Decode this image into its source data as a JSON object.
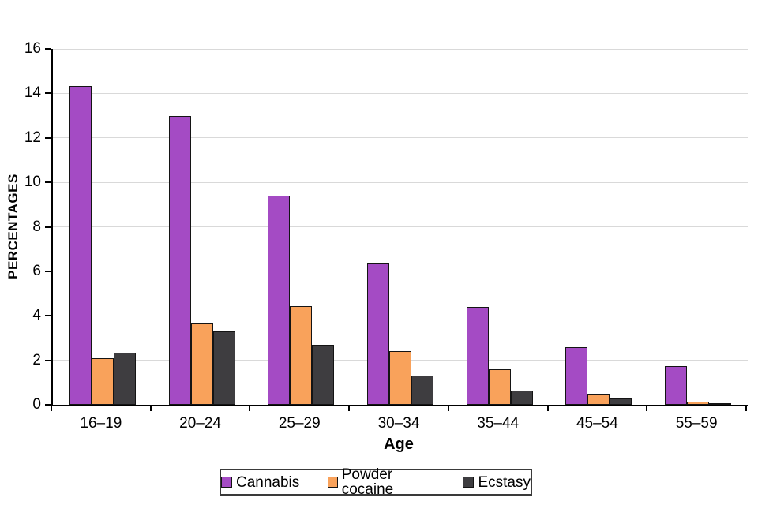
{
  "chart_data": {
    "type": "bar",
    "title": "",
    "xlabel": "Age",
    "ylabel": "PERCENTAGES",
    "categories": [
      "16–19",
      "20–24",
      "25–29",
      "30–34",
      "35–44",
      "45–54",
      "55–59"
    ],
    "series": [
      {
        "name": "Cannabis",
        "color": "#a44bc4",
        "values": [
          14.35,
          13.0,
          9.4,
          6.4,
          4.4,
          2.6,
          1.75
        ]
      },
      {
        "name": "Powder cocaine",
        "color": "#f9a25b",
        "values": [
          2.1,
          3.7,
          4.45,
          2.4,
          1.6,
          0.5,
          0.15
        ]
      },
      {
        "name": "Ecstasy",
        "color": "#3e3d40",
        "values": [
          2.35,
          3.3,
          2.7,
          1.3,
          0.65,
          0.3,
          0.05
        ]
      }
    ],
    "ylim": [
      0,
      16
    ],
    "yticks": [
      0,
      2,
      4,
      6,
      8,
      10,
      12,
      14,
      16
    ],
    "grid": true,
    "gridline_color": "#d9d9d9",
    "axis_color": "#000000",
    "legend_position": "bottom",
    "legend_border_color": "#3a3a3a"
  }
}
